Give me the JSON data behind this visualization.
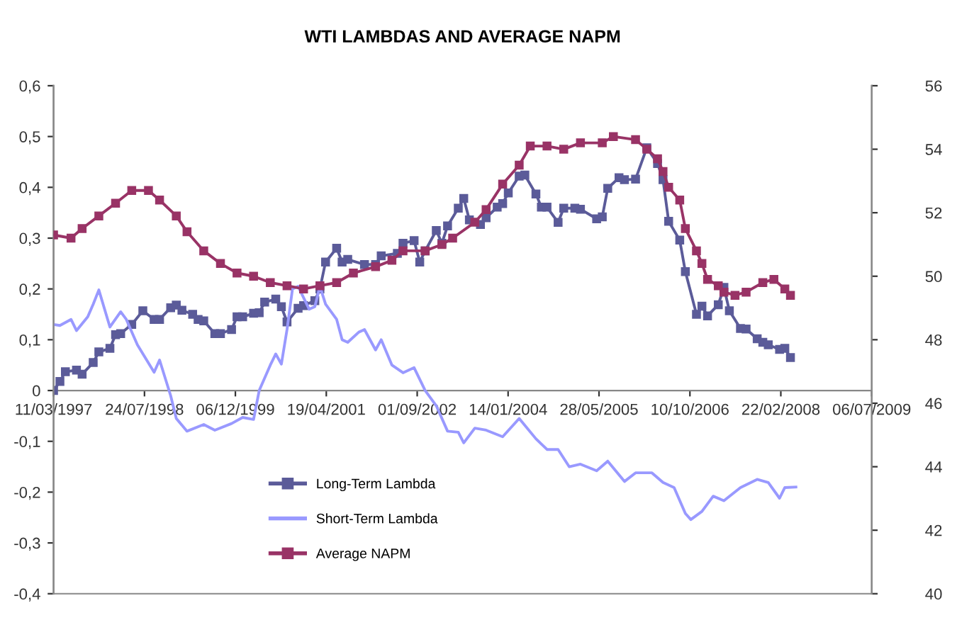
{
  "chart_data": {
    "type": "line",
    "title": "WTI LAMBDAS AND AVERAGE NAPM",
    "xlim": [
      "1997-03-11",
      "2009-07-06"
    ],
    "xticks": [
      {
        "value": "1997-03-11",
        "label": "11/03/1997"
      },
      {
        "value": "1998-07-24",
        "label": "24/07/1998"
      },
      {
        "value": "1999-12-06",
        "label": "06/12/1999"
      },
      {
        "value": "2001-04-19",
        "label": "19/04/2001"
      },
      {
        "value": "2002-09-01",
        "label": "01/09/2002"
      },
      {
        "value": "2004-01-14",
        "label": "14/01/2004"
      },
      {
        "value": "2005-05-28",
        "label": "28/05/2005"
      },
      {
        "value": "2006-10-10",
        "label": "10/10/2006"
      },
      {
        "value": "2008-02-22",
        "label": "22/02/2008"
      },
      {
        "value": "2009-07-06",
        "label": "06/07/2009"
      }
    ],
    "ylim": [
      -0.4,
      0.6
    ],
    "yticks": [
      {
        "value": -0.4,
        "label": "-0,4"
      },
      {
        "value": -0.3,
        "label": "-0,3"
      },
      {
        "value": -0.2,
        "label": "-0,2"
      },
      {
        "value": -0.1,
        "label": "-0,1"
      },
      0,
      {
        "value": 0.1,
        "label": "0,1"
      },
      {
        "value": 0.2,
        "label": "0,2"
      },
      {
        "value": 0.3,
        "label": "0,3"
      },
      {
        "value": 0.4,
        "label": "0,4"
      },
      {
        "value": 0.5,
        "label": "0,5"
      },
      {
        "value": 0.6,
        "label": "0,6"
      }
    ],
    "y2lim": [
      40,
      56
    ],
    "y2ticks": [
      40,
      42,
      44,
      46,
      48,
      50,
      52,
      54,
      56
    ],
    "grid": false,
    "legend": "bottom left",
    "line_style": "solid",
    "series": [
      {
        "name": "Long-Term Lambda",
        "color": "#5b5b99",
        "marker": "square",
        "x": [
          "1997-03-11",
          "1997-04",
          "1997-05",
          "1997-07",
          "1997-08",
          "1997-10",
          "1997-11",
          "1998-01",
          "1998-02",
          "1998-03",
          "1998-05",
          "1998-07",
          "1998-09",
          "1998-10",
          "1998-12",
          "1999-01",
          "1999-02",
          "1999-04",
          "1999-05",
          "1999-06",
          "1999-08",
          "1999-09",
          "1999-11",
          "1999-12",
          "2000-01",
          "2000-03",
          "2000-04",
          "2000-05",
          "2000-07",
          "2000-08",
          "2000-09",
          "2000-11",
          "2000-12",
          "2001-02",
          "2001-03",
          "2001-04",
          "2001-06",
          "2001-07",
          "2001-08",
          "2001-11",
          "2002-01",
          "2002-02",
          "2002-05",
          "2002-06",
          "2002-08",
          "2002-09",
          "2002-10",
          "2002-12",
          "2003-01",
          "2003-02",
          "2003-04",
          "2003-05",
          "2003-06",
          "2003-08",
          "2003-09",
          "2003-11",
          "2003-12",
          "2004-01",
          "2004-03",
          "2004-04",
          "2004-06",
          "2004-07",
          "2004-08",
          "2004-10",
          "2004-11",
          "2005-01",
          "2005-02",
          "2005-05",
          "2005-06",
          "2005-07",
          "2005-09",
          "2005-10",
          "2005-12",
          "2006-02",
          "2006-04",
          "2006-05",
          "2006-06",
          "2006-08",
          "2006-09",
          "2006-11",
          "2006-12",
          "2007-01",
          "2007-03",
          "2007-04",
          "2007-05",
          "2007-07",
          "2007-08",
          "2007-10",
          "2007-11",
          "2007-12",
          "2008-02",
          "2008-03",
          "2008-04"
        ],
        "values": [
          0.0,
          0.018,
          0.037,
          0.04,
          0.032,
          0.055,
          0.076,
          0.083,
          0.11,
          0.112,
          0.13,
          0.157,
          0.14,
          0.14,
          0.163,
          0.168,
          0.158,
          0.15,
          0.14,
          0.137,
          0.112,
          0.112,
          0.12,
          0.145,
          0.145,
          0.152,
          0.153,
          0.174,
          0.18,
          0.165,
          0.135,
          0.162,
          0.167,
          0.177,
          0.2,
          0.253,
          0.28,
          0.253,
          0.258,
          0.248,
          0.248,
          0.265,
          0.27,
          0.29,
          0.295,
          0.253,
          0.275,
          0.315,
          0.29,
          0.324,
          0.359,
          0.378,
          0.336,
          0.327,
          0.34,
          0.361,
          0.368,
          0.389,
          0.422,
          0.424,
          0.387,
          0.361,
          0.361,
          0.331,
          0.359,
          0.359,
          0.357,
          0.338,
          0.342,
          0.398,
          0.419,
          0.415,
          0.416,
          0.478,
          0.447,
          0.415,
          0.333,
          0.296,
          0.234,
          0.15,
          0.166,
          0.147,
          0.169,
          0.203,
          0.157,
          0.122,
          0.121,
          0.102,
          0.095,
          0.09,
          0.081,
          0.083,
          0.065
        ]
      },
      {
        "name": "Short-Term Lambda",
        "color": "#9999ff",
        "marker": "none",
        "x": [
          "1997-03-11",
          "1997-04",
          "1997-06",
          "1997-07",
          "1997-09",
          "1997-10",
          "1997-11",
          "1998-01",
          "1998-03",
          "1998-04",
          "1998-06",
          "1998-09",
          "1998-10",
          "1998-12",
          "1999-01",
          "1999-03",
          "1999-06",
          "1999-08",
          "1999-11",
          "2000-01",
          "2000-03",
          "2000-04",
          "2000-06",
          "2000-07",
          "2000-08",
          "2000-09",
          "2000-10",
          "2000-11",
          "2001-01",
          "2001-02",
          "2001-03",
          "2001-04",
          "2001-06",
          "2001-07",
          "2001-08",
          "2001-10",
          "2001-11",
          "2002-01",
          "2002-02",
          "2002-04",
          "2002-06",
          "2002-08",
          "2002-10",
          "2002-12",
          "2003-02",
          "2003-04",
          "2003-05",
          "2003-07",
          "2003-09",
          "2003-12",
          "2004-03",
          "2004-06",
          "2004-08",
          "2004-10",
          "2004-12",
          "2005-02",
          "2005-05",
          "2005-07",
          "2005-10",
          "2005-12",
          "2006-03",
          "2006-05",
          "2006-07",
          "2006-09",
          "2006-10",
          "2006-12",
          "2007-02",
          "2007-04",
          "2007-07",
          "2007-10",
          "2007-12",
          "2008-02",
          "2008-03",
          "2008-05"
        ],
        "values": [
          0.13,
          0.128,
          0.14,
          0.118,
          0.145,
          0.17,
          0.198,
          0.125,
          0.155,
          0.14,
          0.09,
          0.036,
          0.06,
          -0.01,
          -0.055,
          -0.08,
          -0.067,
          -0.078,
          -0.065,
          -0.053,
          -0.057,
          0.0,
          0.05,
          0.072,
          0.052,
          0.12,
          0.2,
          0.205,
          0.16,
          0.165,
          0.205,
          0.17,
          0.14,
          0.1,
          0.095,
          0.115,
          0.12,
          0.08,
          0.1,
          0.05,
          0.035,
          0.045,
          0.0,
          -0.03,
          -0.08,
          -0.082,
          -0.103,
          -0.074,
          -0.078,
          -0.091,
          -0.055,
          -0.095,
          -0.116,
          -0.116,
          -0.15,
          -0.145,
          -0.158,
          -0.139,
          -0.179,
          -0.162,
          -0.162,
          -0.181,
          -0.191,
          -0.242,
          -0.254,
          -0.238,
          -0.208,
          -0.217,
          -0.191,
          -0.175,
          -0.181,
          -0.212,
          -0.191,
          -0.19
        ]
      },
      {
        "name": "Average NAPM",
        "color": "#993366",
        "marker": "square",
        "axis": "y2",
        "x": [
          "1997-03-11",
          "1997-06",
          "1997-08",
          "1997-11",
          "1998-02",
          "1998-05",
          "1998-08",
          "1998-10",
          "1999-01",
          "1999-03",
          "1999-06",
          "1999-09",
          "1999-12",
          "2000-03",
          "2000-06",
          "2000-09",
          "2000-12",
          "2001-03",
          "2001-06",
          "2001-09",
          "2002-01",
          "2002-04",
          "2002-06",
          "2002-10",
          "2003-01",
          "2003-03",
          "2003-07",
          "2003-09",
          "2003-12",
          "2004-03",
          "2004-05",
          "2004-08",
          "2004-11",
          "2005-02",
          "2005-06",
          "2005-08",
          "2005-12",
          "2006-02",
          "2006-04",
          "2006-05",
          "2006-06",
          "2006-08",
          "2006-09",
          "2006-11",
          "2006-12",
          "2007-01",
          "2007-03",
          "2007-04",
          "2007-06",
          "2007-08",
          "2007-11",
          "2008-01",
          "2008-03",
          "2008-04"
        ],
        "values": [
          51.3,
          51.2,
          51.5,
          51.9,
          52.3,
          52.7,
          52.7,
          52.4,
          51.9,
          51.4,
          50.8,
          50.4,
          50.1,
          50.0,
          49.8,
          49.7,
          49.6,
          49.7,
          49.8,
          50.1,
          50.3,
          50.5,
          50.8,
          50.8,
          51.0,
          51.2,
          51.7,
          52.1,
          52.9,
          53.5,
          54.1,
          54.1,
          54.0,
          54.2,
          54.2,
          54.4,
          54.3,
          54.0,
          53.7,
          53.3,
          52.8,
          52.4,
          51.5,
          50.8,
          50.4,
          49.9,
          49.7,
          49.5,
          49.4,
          49.5,
          49.8,
          49.9,
          49.6,
          49.4
        ]
      }
    ]
  }
}
